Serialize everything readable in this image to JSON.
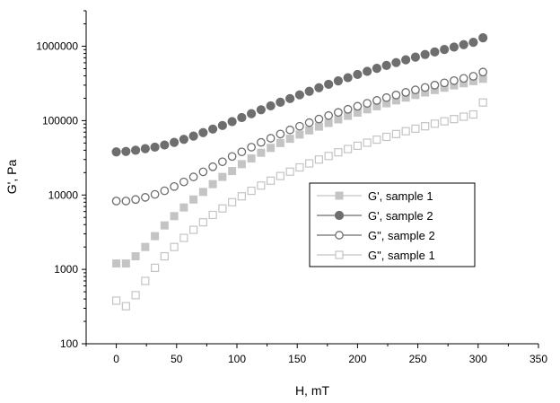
{
  "chart_data": {
    "type": "scatter",
    "xlabel": "H, mT",
    "ylabel": "G', Pa",
    "xlim": [
      -25,
      350
    ],
    "ylim": [
      100,
      3000000
    ],
    "yscale": "log",
    "xticks": [
      0,
      50,
      100,
      150,
      200,
      250,
      300,
      350
    ],
    "xtick_labels": [
      "0",
      "50",
      "100",
      "150",
      "200",
      "250",
      "300",
      "350"
    ],
    "yticks": [
      100,
      1000,
      10000,
      100000,
      1000000
    ],
    "ytick_labels": [
      "100",
      "1000",
      "10000",
      "100000",
      "1000000"
    ],
    "grid": false,
    "legend_position": "center-right",
    "x": [
      0,
      8,
      16,
      24,
      32,
      40,
      48,
      56,
      64,
      72,
      80,
      88,
      96,
      104,
      112,
      120,
      128,
      136,
      144,
      152,
      160,
      168,
      176,
      184,
      192,
      200,
      208,
      216,
      224,
      232,
      240,
      248,
      256,
      264,
      272,
      280,
      288,
      296,
      304
    ],
    "series": [
      {
        "name": "G', sample 1",
        "marker": "square-filled",
        "color": "#c4c4c4",
        "values": [
          1200,
          1200,
          1500,
          2000,
          2800,
          3900,
          5200,
          6800,
          8700,
          11000,
          14000,
          17500,
          21000,
          26000,
          31000,
          37000,
          43000,
          50000,
          57000,
          65000,
          74000,
          83000,
          93000,
          104000,
          116000,
          128000,
          142000,
          156000,
          171000,
          187000,
          204000,
          221000,
          239000,
          258000,
          277000,
          298000,
          318000,
          340000,
          365000
        ]
      },
      {
        "name": "G', sample 2",
        "marker": "circle-filled",
        "color": "#6e6e6e",
        "values": [
          38000,
          38500,
          40000,
          42000,
          44000,
          47000,
          51000,
          56000,
          62000,
          69000,
          77000,
          86000,
          97000,
          110000,
          124000,
          140000,
          158000,
          177000,
          198000,
          222000,
          248000,
          277000,
          308000,
          342000,
          378000,
          418000,
          460000,
          505000,
          553000,
          604000,
          658000,
          715000,
          775000,
          838000,
          905000,
          975000,
          1050000,
          1130000,
          1300000
        ]
      },
      {
        "name": "G\", sample 2",
        "marker": "circle-open",
        "color": "#6e6e6e",
        "values": [
          8300,
          8300,
          8700,
          9300,
          10200,
          11400,
          13000,
          15000,
          17500,
          20500,
          24000,
          28000,
          33000,
          38000,
          44000,
          51000,
          58000,
          66000,
          75000,
          84000,
          94000,
          105000,
          117000,
          129000,
          142000,
          156000,
          171000,
          187000,
          204000,
          221000,
          240000,
          259000,
          279000,
          300000,
          322000,
          345000,
          370000,
          395000,
          450000
        ]
      },
      {
        "name": "G\", sample 1",
        "marker": "square-open",
        "color": "#c4c4c4",
        "values": [
          380,
          320,
          450,
          700,
          1050,
          1500,
          2000,
          2650,
          3400,
          4300,
          5400,
          6600,
          8000,
          9600,
          11400,
          13400,
          15600,
          18000,
          20600,
          23500,
          26600,
          30000,
          33500,
          37500,
          41500,
          46000,
          50500,
          55500,
          60500,
          66000,
          72000,
          78000,
          84000,
          91000,
          98000,
          105000,
          113000,
          121000,
          175000
        ]
      }
    ]
  }
}
